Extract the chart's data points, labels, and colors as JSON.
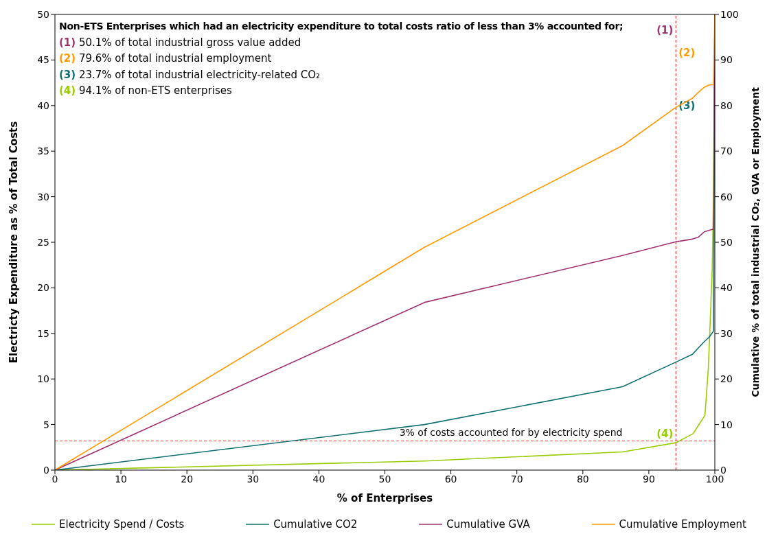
{
  "chart_data": {
    "type": "line",
    "title": "Non-ETS Enterprises which had an electricity expenditure to total costs ratio of less than 3% accounted for;",
    "xlabel": "% of Enterprises",
    "ylabel": "Electricty Expenditure as % of Total Costs",
    "y2label": "Cumulative % of total industrial CO₂, GVA or Employment",
    "annotations": [
      "(1) 50.1% of total industrial gross value added",
      "(2) 79.6% of total industrial employment",
      "(3) 23.7% of total industrial electricity-related CO₂",
      "(4) 94.1% of non-ETS enterprises",
      "(1)",
      "(2)",
      "(3)",
      "(4)"
    ],
    "xlim": [
      0,
      100
    ],
    "xticks": [
      0,
      10,
      20,
      30,
      40,
      50,
      60,
      70,
      80,
      90,
      100
    ],
    "ylim": [
      0,
      50
    ],
    "yticks": [
      0,
      5,
      10,
      15,
      20,
      25,
      30,
      35,
      40,
      45,
      50
    ],
    "y2lim": [
      0,
      100
    ],
    "y2ticks": [
      0,
      10,
      20,
      30,
      40,
      50,
      60,
      70,
      80,
      90,
      100
    ],
    "grid": false,
    "legend": "bottom",
    "marker": "none",
    "line_style": "solid",
    "ref_lines": [
      {
        "axis": "y",
        "value": 3.2,
        "label": "3% of costs accounted for by electricity spend",
        "color": "#ff3b3b",
        "line_style": "dashed"
      },
      {
        "axis": "x",
        "value": 94.1,
        "label": null,
        "color": "#ff3b3b",
        "line_style": "dashed"
      }
    ],
    "series": [
      {
        "name": "Electricity Spend / Costs",
        "color": "#99cc00",
        "x": [
          0,
          56,
          86,
          94.1,
          96.7,
          98.5,
          99,
          99.2,
          99.6,
          99.8,
          100
        ],
        "values": [
          0,
          1.0,
          2.0,
          3.0,
          4.0,
          6.0,
          11,
          14.4,
          22,
          30,
          50
        ]
      },
      {
        "name": "Cumulative CO2",
        "color": "#0f7070",
        "axis": "y2",
        "x": [
          0,
          56,
          86,
          94.1,
          96.6,
          98.4,
          99.1,
          99.8,
          100
        ],
        "values": [
          0,
          10,
          18.3,
          23.7,
          25.4,
          28.2,
          29.1,
          30.5,
          100
        ]
      },
      {
        "name": "Cumulative GVA",
        "color": "#a0336e",
        "axis": "y2",
        "x": [
          0,
          56,
          86,
          94.1,
          96.6,
          97.5,
          98.4,
          99.1,
          99.8,
          100
        ],
        "values": [
          0,
          36.8,
          47.1,
          50.1,
          50.7,
          51.1,
          52.3,
          52.6,
          52.9,
          100
        ]
      },
      {
        "name": "Cumulative Employment",
        "color": "#ff9900",
        "axis": "y2",
        "x": [
          0,
          56,
          86,
          94.1,
          96.6,
          97.8,
          98.4,
          99.1,
          99.8,
          100
        ],
        "values": [
          0,
          48.9,
          71.2,
          79.6,
          81.6,
          83.3,
          84.0,
          84.5,
          84.6,
          100
        ]
      }
    ]
  }
}
